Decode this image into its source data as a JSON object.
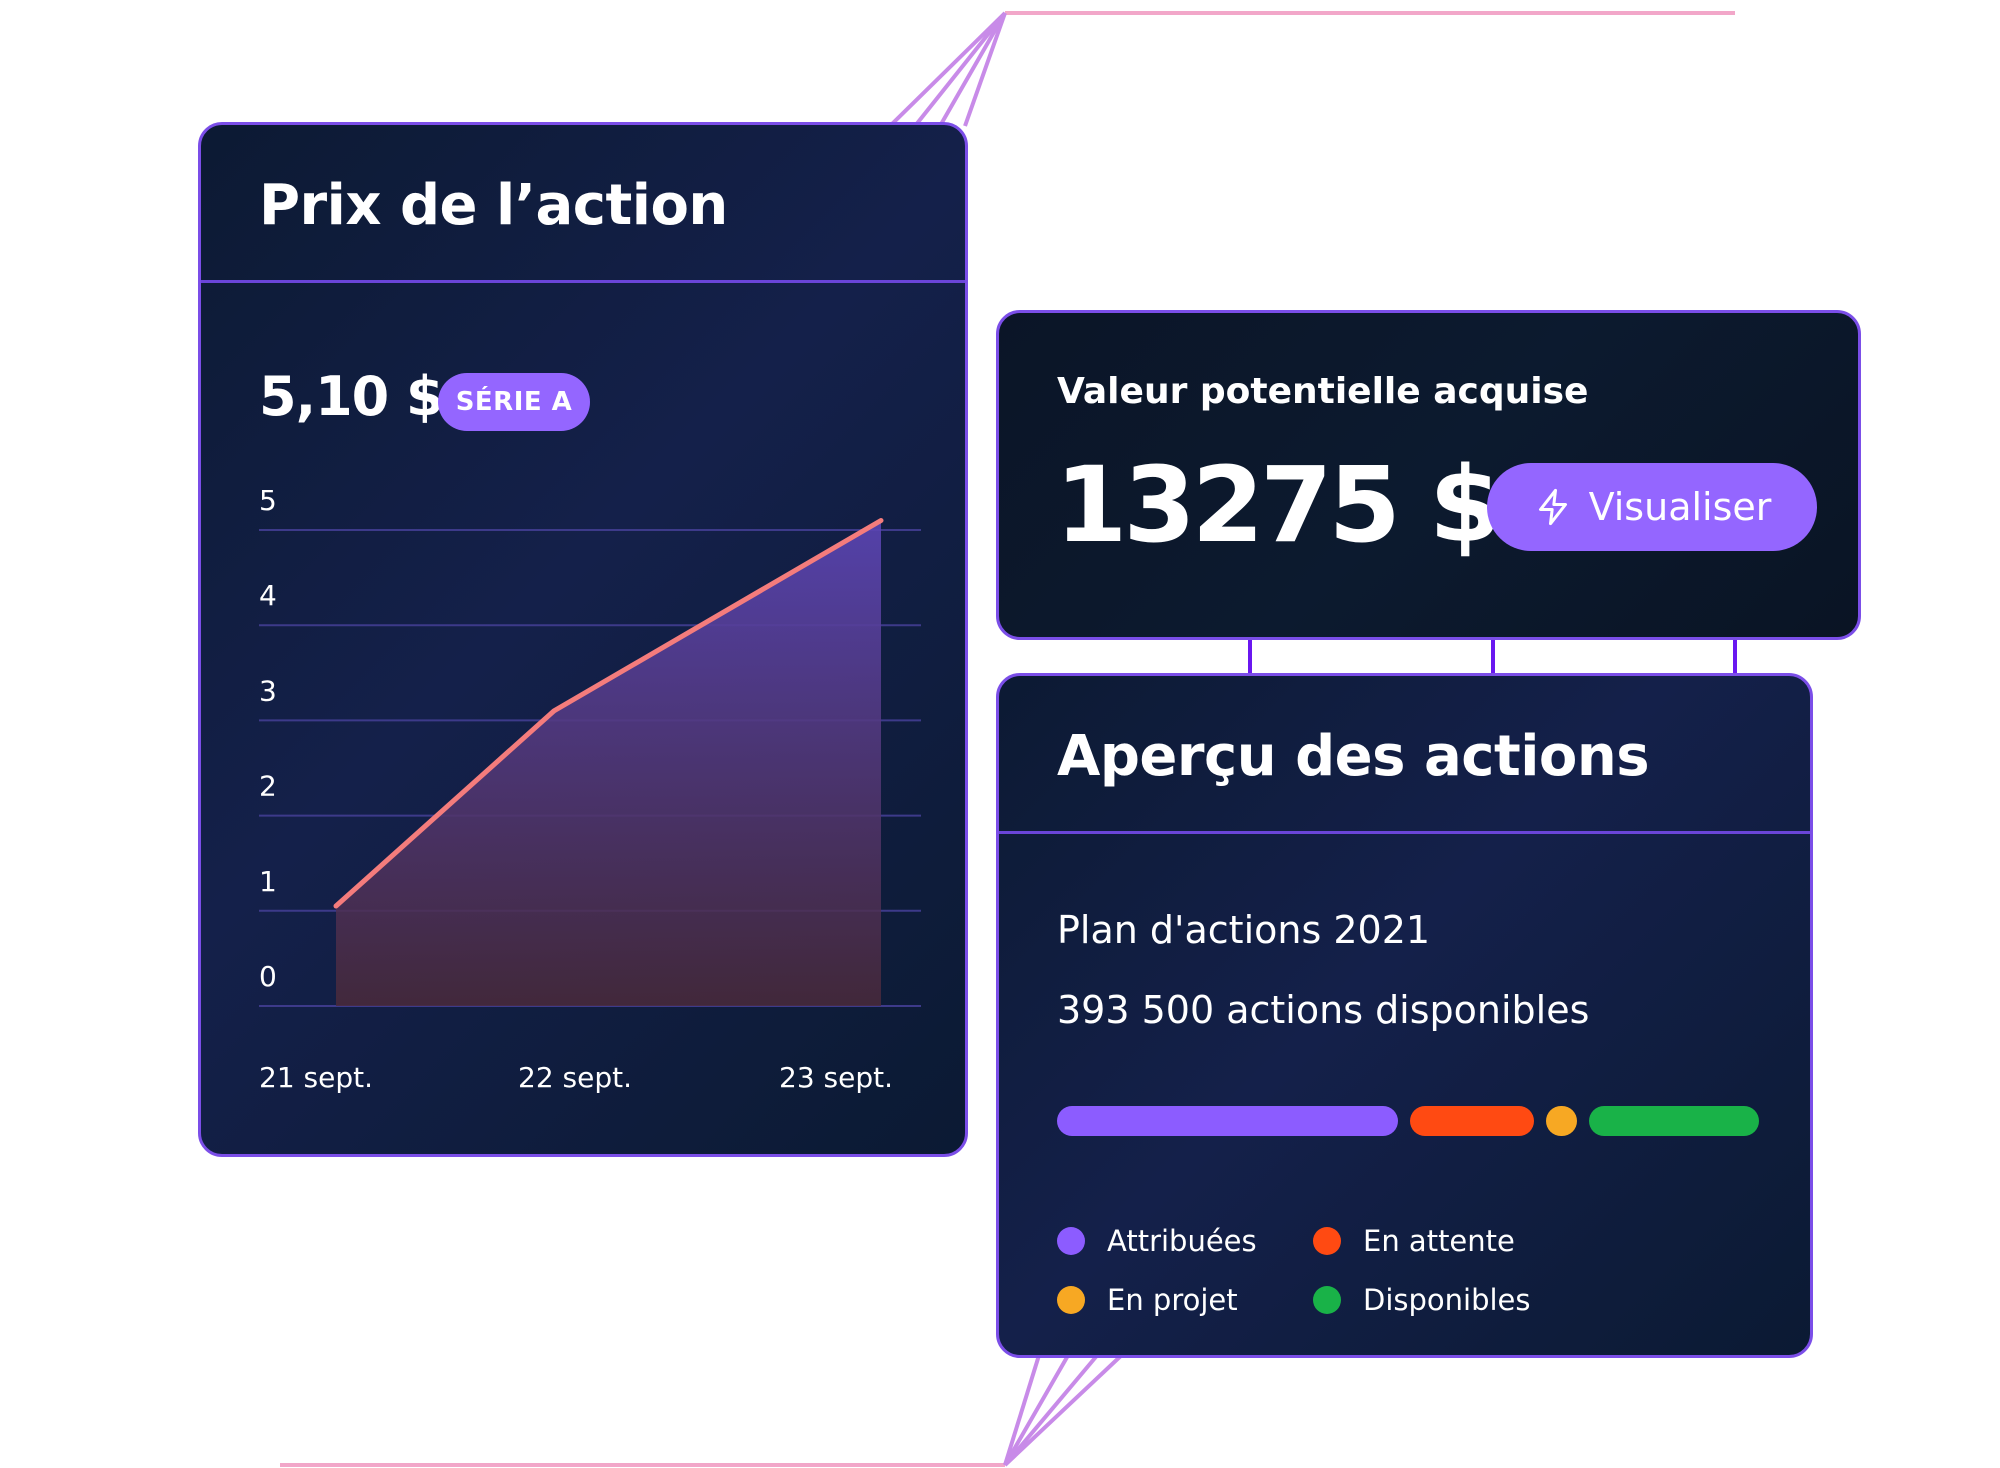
{
  "price_card": {
    "title": "Prix de l’action",
    "price": "5,10 $",
    "badge": "SÉRIE A",
    "line_color": "#f47c7c",
    "fill_color": "#5a44b0"
  },
  "chart_data": {
    "type": "area",
    "x": [
      "21 sept.",
      "22 sept.",
      "23 sept."
    ],
    "series": [
      {
        "x": [
          0,
          1.2,
          3.0
        ],
        "values": [
          1.05,
          3.1,
          5.1
        ]
      }
    ],
    "y_ticks": [
      "0",
      "1",
      "2",
      "3",
      "4",
      "5"
    ],
    "ylim": [
      0,
      5
    ],
    "grid": true
  },
  "value_card": {
    "label": "Valeur potentielle acquise",
    "amount": "13275 $",
    "button_label": "Visualiser",
    "button_icon": "lightning-icon",
    "accent": "#9466ff"
  },
  "overview_card": {
    "title": "Aperçu des actions",
    "plan": "Plan d'actions 2021",
    "available": "393 500 actions disponibles",
    "segments": [
      {
        "name": "attribuees",
        "fraction": 0.44,
        "color": "#8c5cff"
      },
      {
        "name": "en-attente",
        "fraction": 0.16,
        "color": "#ff4a12"
      },
      {
        "name": "en-projet",
        "fraction": 0.04,
        "color": "#f7a823"
      },
      {
        "name": "disponibles",
        "fraction": 0.22,
        "color": "#19b248"
      }
    ],
    "legend": {
      "attribuees": "Attribuées",
      "en_attente": "En attente",
      "en_projet": "En projet",
      "disponibles": "Disponibles"
    }
  }
}
